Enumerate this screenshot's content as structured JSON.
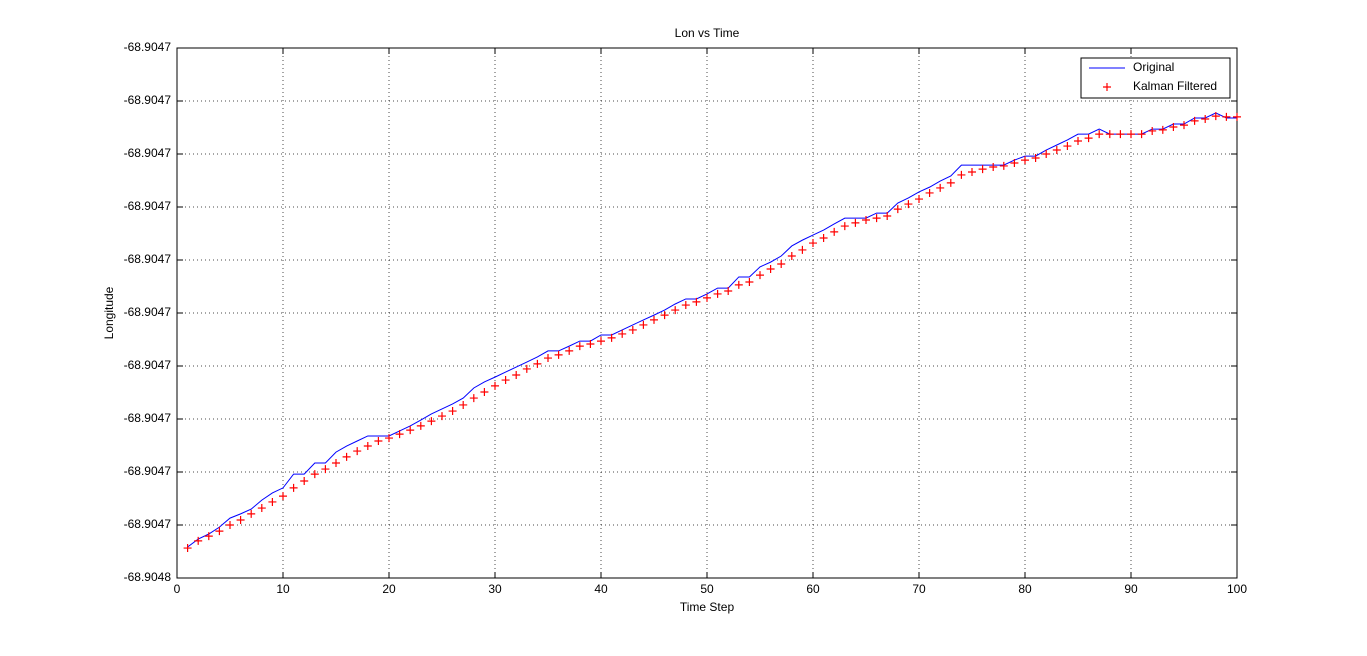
{
  "chart_data": {
    "type": "line",
    "title": "Lon vs Time",
    "x_label": "Time Step",
    "y_label": "Longitude",
    "grid": true,
    "legend": "northeast",
    "xlim": [
      0,
      100
    ],
    "xticks": [
      0,
      10,
      20,
      30,
      40,
      50,
      60,
      70,
      80,
      90,
      100
    ],
    "ylim": [
      -68.904751,
      -68.904731
    ],
    "yticks": [
      {
        "value": -68.904751,
        "label": "-68.9048"
      },
      {
        "value": -68.904749,
        "label": "-68.9047"
      },
      {
        "value": -68.904747,
        "label": "-68.9047"
      },
      {
        "value": -68.904745,
        "label": "-68.9047"
      },
      {
        "value": -68.904743,
        "label": "-68.9047"
      },
      {
        "value": -68.904741,
        "label": "-68.9047"
      },
      {
        "value": -68.904739,
        "label": "-68.9047"
      },
      {
        "value": -68.904737,
        "label": "-68.9047"
      },
      {
        "value": -68.904735,
        "label": "-68.9047"
      },
      {
        "value": -68.904733,
        "label": "-68.9047"
      },
      {
        "value": -68.904731,
        "label": "-68.9047"
      }
    ],
    "x": [
      1,
      2,
      3,
      4,
      5,
      6,
      7,
      8,
      9,
      10,
      11,
      12,
      13,
      14,
      15,
      16,
      17,
      18,
      19,
      20,
      21,
      22,
      23,
      24,
      25,
      26,
      27,
      28,
      29,
      30,
      31,
      32,
      33,
      34,
      35,
      36,
      37,
      38,
      39,
      40,
      41,
      42,
      43,
      44,
      45,
      46,
      47,
      48,
      49,
      50,
      51,
      52,
      53,
      54,
      55,
      56,
      57,
      58,
      59,
      60,
      61,
      62,
      63,
      64,
      65,
      66,
      67,
      68,
      69,
      70,
      71,
      72,
      73,
      74,
      75,
      76,
      77,
      78,
      79,
      80,
      81,
      82,
      83,
      84,
      85,
      86,
      87,
      88,
      89,
      90,
      91,
      92,
      93,
      94,
      95,
      96,
      97,
      98,
      99,
      100
    ],
    "series": [
      {
        "name": "Original",
        "color": "#0000ff",
        "style": "line",
        "values": [
          -68.90474983,
          -68.90474953,
          -68.90474934,
          -68.90474908,
          -68.90474874,
          -68.90474858,
          -68.9047484,
          -68.90474806,
          -68.90474779,
          -68.9047476,
          -68.90474708,
          -68.90474708,
          -68.90474666,
          -68.90474666,
          -68.90474625,
          -68.90474602,
          -68.90474583,
          -68.90474564,
          -68.90474564,
          -68.90474564,
          -68.90474545,
          -68.90474526,
          -68.90474504,
          -68.90474481,
          -68.90474462,
          -68.90474443,
          -68.90474421,
          -68.90474383,
          -68.9047436,
          -68.90474342,
          -68.90474323,
          -68.90474304,
          -68.90474285,
          -68.90474266,
          -68.90474243,
          -68.90474243,
          -68.90474225,
          -68.90474206,
          -68.90474206,
          -68.90474183,
          -68.90474183,
          -68.90474164,
          -68.90474145,
          -68.90474126,
          -68.90474108,
          -68.90474089,
          -68.90474066,
          -68.90474047,
          -68.90474047,
          -68.90474028,
          -68.90474006,
          -68.90474006,
          -68.90473964,
          -68.90473964,
          -68.90473926,
          -68.90473908,
          -68.90473885,
          -68.90473847,
          -68.90473825,
          -68.90473806,
          -68.90473787,
          -68.90473764,
          -68.90473742,
          -68.90473742,
          -68.90473742,
          -68.90473723,
          -68.90473723,
          -68.90473685,
          -68.90473666,
          -68.90473643,
          -68.90473625,
          -68.90473602,
          -68.90473583,
          -68.90473542,
          -68.90473542,
          -68.90473542,
          -68.90473542,
          -68.90473542,
          -68.90473523,
          -68.90473508,
          -68.90473508,
          -68.90473485,
          -68.90473466,
          -68.90473447,
          -68.90473425,
          -68.90473425,
          -68.90473406,
          -68.90473425,
          -68.90473425,
          -68.90473425,
          -68.90473425,
          -68.90473406,
          -68.90473406,
          -68.90473387,
          -68.90473387,
          -68.90473364,
          -68.90473364,
          -68.90473345,
          -68.90473364,
          -68.90473364
        ]
      },
      {
        "name": "Kalman Filtered",
        "color": "#ff0000",
        "style": "plus",
        "values": [
          -68.90474987,
          -68.9047496,
          -68.90474942,
          -68.90474923,
          -68.904749,
          -68.90474881,
          -68.90474858,
          -68.90474836,
          -68.90474813,
          -68.90474791,
          -68.9047476,
          -68.90474734,
          -68.90474708,
          -68.90474689,
          -68.90474666,
          -68.90474643,
          -68.90474621,
          -68.90474602,
          -68.90474583,
          -68.90474572,
          -68.90474557,
          -68.90474542,
          -68.90474526,
          -68.90474508,
          -68.90474489,
          -68.9047447,
          -68.90474447,
          -68.90474421,
          -68.90474398,
          -68.90474375,
          -68.90474353,
          -68.90474334,
          -68.90474311,
          -68.90474292,
          -68.9047427,
          -68.90474258,
          -68.90474243,
          -68.90474225,
          -68.90474217,
          -68.90474206,
          -68.90474194,
          -68.90474179,
          -68.90474164,
          -68.90474145,
          -68.90474126,
          -68.90474108,
          -68.90474089,
          -68.9047407,
          -68.90474058,
          -68.90474043,
          -68.90474028,
          -68.90474017,
          -68.90473994,
          -68.90473983,
          -68.90473957,
          -68.90473934,
          -68.90473915,
          -68.90473885,
          -68.90473862,
          -68.90473836,
          -68.90473817,
          -68.90473794,
          -68.90473772,
          -68.9047376,
          -68.90473749,
          -68.90473742,
          -68.90473734,
          -68.90473708,
          -68.90473689,
          -68.9047367,
          -68.90473647,
          -68.90473628,
          -68.90473609,
          -68.90473579,
          -68.90473568,
          -68.90473557,
          -68.90473549,
          -68.90473545,
          -68.90473534,
          -68.90473523,
          -68.90473515,
          -68.904735,
          -68.90473485,
          -68.9047347,
          -68.90473451,
          -68.9047344,
          -68.90473425,
          -68.90473425,
          -68.90473425,
          -68.90473425,
          -68.90473425,
          -68.90473413,
          -68.90473409,
          -68.90473398,
          -68.90473391,
          -68.90473375,
          -68.90473368,
          -68.90473357,
          -68.9047336,
          -68.9047336
        ]
      }
    ]
  }
}
